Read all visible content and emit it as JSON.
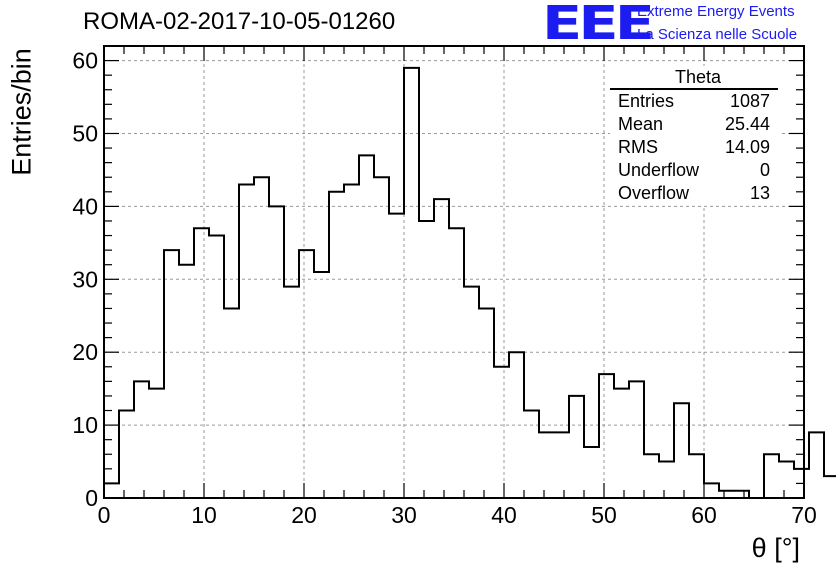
{
  "title": "ROMA-02-2017-10-05-01260",
  "logo": {
    "mark": "EEE",
    "line1": "Extreme Energy Events",
    "line2": "La Scienza nelle Scuole",
    "color": "#1c1cf0"
  },
  "stats": {
    "title": "Theta",
    "rows": [
      {
        "label": "Entries",
        "value": "1087"
      },
      {
        "label": "Mean",
        "value": "25.44"
      },
      {
        "label": "RMS",
        "value": "14.09"
      },
      {
        "label": "Underflow",
        "value": "0"
      },
      {
        "label": "Overflow",
        "value": "13"
      }
    ]
  },
  "chart_data": {
    "type": "histogram",
    "title": "ROMA-02-2017-10-05-01260",
    "xlabel": "θ [°]",
    "ylabel": "Entries/bin",
    "xlim": [
      0,
      70
    ],
    "ylim": [
      0,
      62
    ],
    "xticks": [
      0,
      10,
      20,
      30,
      40,
      50,
      60,
      70
    ],
    "yticks": [
      0,
      10,
      20,
      30,
      40,
      50,
      60
    ],
    "grid": true,
    "bin_width": 1.5,
    "bin_start": 0,
    "values": [
      2,
      12,
      16,
      15,
      34,
      32,
      37,
      36,
      26,
      43,
      44,
      40,
      29,
      34,
      31,
      42,
      43,
      47,
      44,
      39,
      59,
      38,
      41,
      37,
      29,
      26,
      18,
      20,
      12,
      9,
      9,
      14,
      7,
      17,
      15,
      16,
      6,
      5,
      13,
      6,
      2,
      1,
      1,
      0,
      6,
      5,
      4,
      9,
      3
    ],
    "line_color": "#000000"
  }
}
